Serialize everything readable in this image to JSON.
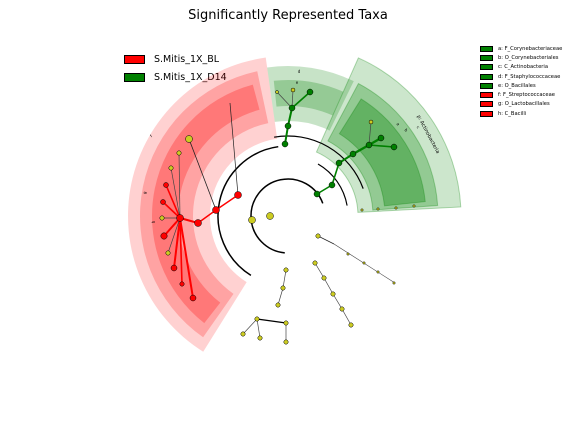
{
  "title": "Significantly Represented Taxa",
  "colors": {
    "red": "#ff0000",
    "green": "#008000",
    "red_fill": "#ff0000",
    "green_fill": "#008000",
    "node_yellow": "#cccc22"
  },
  "groups": [
    {
      "label": "S.Mitis_1X_BL",
      "color": "#ff0000"
    },
    {
      "label": "S.Mitis_1X_D14",
      "color": "#008000"
    }
  ],
  "taxa_legend": [
    {
      "label": "a: F_Corynebacteriaceae",
      "color": "#008000"
    },
    {
      "label": "b: O_Corynebacteriales",
      "color": "#008000"
    },
    {
      "label": "c: C_Actinobacteria",
      "color": "#008000"
    },
    {
      "label": "d: F_Staphylococcaceae",
      "color": "#008000"
    },
    {
      "label": "e: O_Bacillales",
      "color": "#008000"
    },
    {
      "label": "f: F_Streptococcaceae",
      "color": "#ff0000"
    },
    {
      "label": "g: O_Lactobacillales",
      "color": "#ff0000"
    },
    {
      "label": "h: C_Bacilli",
      "color": "#ff0000"
    }
  ],
  "clade_labels": [
    {
      "text": "p: Actinobacteria"
    },
    {
      "text": "a"
    },
    {
      "text": "b"
    },
    {
      "text": "c"
    },
    {
      "text": "d"
    },
    {
      "text": "e"
    },
    {
      "text": "f"
    },
    {
      "text": "g"
    },
    {
      "text": "h"
    }
  ]
}
